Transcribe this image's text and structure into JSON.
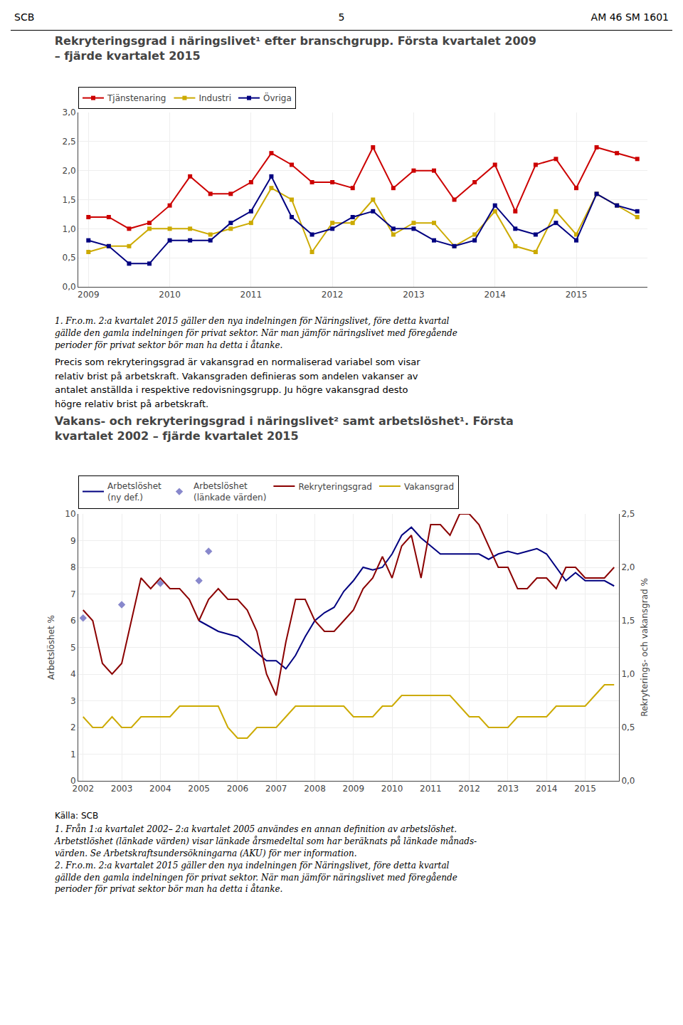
{
  "chart_data": [
    {
      "type": "line",
      "title": "Rekryteringsgrad i näringslivet¹ efter branschgrupp. Första kvartalet 2009\n– fjärde kvartalet 2015",
      "categories": [
        "2009",
        null,
        null,
        null,
        "2010",
        null,
        null,
        null,
        "2011",
        null,
        null,
        null,
        "2012",
        null,
        null,
        null,
        "2013",
        null,
        null,
        null,
        "2014",
        null,
        null,
        null,
        "2015",
        null,
        null,
        null
      ],
      "series": [
        {
          "name": "Tjänstenaring",
          "color": "#cc0000",
          "marker": "square",
          "values": [
            1.2,
            1.2,
            1.0,
            1.1,
            1.4,
            1.9,
            1.6,
            1.6,
            1.8,
            2.3,
            2.1,
            1.8,
            1.8,
            1.7,
            2.4,
            1.7,
            2.0,
            2.0,
            1.5,
            1.8,
            2.1,
            1.3,
            2.1,
            2.2,
            1.7,
            2.4,
            2.3,
            2.2
          ]
        },
        {
          "name": "Industri",
          "color": "#ccaa00",
          "marker": "square",
          "values": [
            0.6,
            0.7,
            0.7,
            1.0,
            1.0,
            1.0,
            0.9,
            1.0,
            1.1,
            1.7,
            1.5,
            0.6,
            1.1,
            1.1,
            1.5,
            0.9,
            1.1,
            1.1,
            0.7,
            0.9,
            1.3,
            0.7,
            0.6,
            1.3,
            0.9,
            1.6,
            1.4,
            1.2
          ]
        },
        {
          "name": "Övriga",
          "color": "#000080",
          "marker": "square",
          "values": [
            0.8,
            0.7,
            0.4,
            0.4,
            0.8,
            0.8,
            0.8,
            1.1,
            1.3,
            1.9,
            1.2,
            0.9,
            1.0,
            1.2,
            1.3,
            1.0,
            1.0,
            0.8,
            0.7,
            0.8,
            1.4,
            1.0,
            0.9,
            1.1,
            0.8,
            1.6,
            1.4,
            1.3
          ]
        }
      ],
      "ylim": [
        0.0,
        3.0
      ],
      "yticks": [
        {
          "value": 0.0,
          "label": "0,0"
        },
        {
          "value": 0.5,
          "label": "0,5"
        },
        {
          "value": 1.0,
          "label": "1,0"
        },
        {
          "value": 1.5,
          "label": "1,5"
        },
        {
          "value": 2.0,
          "label": "2,0"
        },
        {
          "value": 2.5,
          "label": "2,5"
        },
        {
          "value": 3.0,
          "label": "3,0"
        }
      ],
      "grid": true,
      "legend": "upper left",
      "annotations": [
        "SCB",
        "5",
        "AM 46 SM 1601",
        "1. Fr.o.m. 2:a kvartalet 2015 gäller den nya indelningen för Näringslivet, före detta kvartal\ngällde den gamla indelningen för privat sektor. När man jämför näringslivet med föregående\nperioder för privat sektor bör man ha detta i åtanke.",
        "Precis som rekryteringsgrad är vakansgrad en normaliserad variabel som visar\nrelativ brist på arbetskraft. Vakansgraden definieras som andelen vakanser av\nantalet anställda i respektive redovisningsgrupp. Ju högre vakansgrad desto\nhögre relativ brist på arbetskraft."
      ]
    },
    {
      "type": "line",
      "title": "Vakans- och rekryteringsgrad i näringslivet² samt arbetslöshet¹. Första\nkvartalet 2002 – fjärde kvartalet 2015",
      "categories": [
        "2002",
        null,
        null,
        null,
        "2003",
        null,
        null,
        null,
        "2004",
        null,
        null,
        null,
        "2005",
        null,
        null,
        null,
        "2006",
        null,
        null,
        null,
        "2007",
        null,
        null,
        null,
        "2008",
        null,
        null,
        null,
        "2009",
        null,
        null,
        null,
        "2010",
        null,
        null,
        null,
        "2011",
        null,
        null,
        null,
        "2012",
        null,
        null,
        null,
        "2013",
        null,
        null,
        null,
        "2014",
        null,
        null,
        null,
        "2015",
        null,
        null,
        null
      ],
      "series": [
        {
          "name": "Arbetslöshet\n(ny def.)",
          "color": "#000080",
          "type": "line",
          "values": [
            null,
            null,
            null,
            null,
            null,
            null,
            null,
            null,
            null,
            null,
            null,
            null,
            6.0,
            5.8,
            5.6,
            5.5,
            5.4,
            5.1,
            4.8,
            4.5,
            4.5,
            4.2,
            4.7,
            5.4,
            6.0,
            6.3,
            6.5,
            7.1,
            7.5,
            8.0,
            7.9,
            8.0,
            8.5,
            9.2,
            9.5,
            9.1,
            8.8,
            8.5,
            8.5,
            8.5,
            8.5,
            8.5,
            8.3,
            8.5,
            8.6,
            8.5,
            8.6,
            8.7,
            8.5,
            8.0,
            7.5,
            7.8,
            7.5,
            7.5,
            7.5,
            7.3
          ]
        },
        {
          "name": "Arbetslöshet\n(länkade värden)",
          "color": "#8888cc",
          "type": "scatter",
          "marker": "diamond",
          "values": [
            6.1,
            null,
            null,
            null,
            6.6,
            null,
            null,
            null,
            7.4,
            null,
            null,
            null,
            7.5,
            8.6,
            null,
            null,
            null,
            null,
            null,
            null,
            null,
            null,
            null,
            null,
            null,
            null,
            null,
            null,
            null,
            null,
            null,
            null,
            null,
            null,
            null,
            null,
            null,
            null,
            null,
            null,
            null,
            null,
            null,
            null,
            null,
            null,
            null,
            null,
            null,
            null,
            null,
            null,
            null,
            null,
            null,
            null
          ]
        },
        {
          "name": "Rekryteringsgrad",
          "color": "#8b0000",
          "type": "line",
          "axis": "y2",
          "values": [
            1.6,
            1.5,
            1.1,
            1.0,
            1.1,
            1.5,
            1.9,
            1.8,
            1.9,
            1.8,
            1.8,
            1.7,
            1.5,
            1.7,
            1.8,
            1.7,
            1.7,
            1.6,
            1.4,
            1.0,
            0.8,
            1.3,
            1.7,
            1.7,
            1.5,
            1.4,
            1.4,
            1.5,
            1.6,
            1.8,
            1.9,
            2.1,
            1.9,
            2.2,
            2.3,
            1.9,
            2.4,
            2.4,
            2.3,
            2.5,
            2.5,
            2.4,
            2.2,
            2.0,
            2.0,
            1.8,
            1.8,
            1.9,
            1.9,
            1.8,
            2.0,
            2.0,
            1.9,
            1.9,
            1.9,
            2.0
          ]
        },
        {
          "name": "Vakansgrad",
          "color": "#ccaa00",
          "type": "line",
          "axis": "y2",
          "values": [
            0.6,
            0.5,
            0.5,
            0.6,
            0.5,
            0.5,
            0.6,
            0.6,
            0.6,
            0.6,
            0.7,
            0.7,
            0.7,
            0.7,
            0.7,
            0.5,
            0.4,
            0.4,
            0.5,
            0.5,
            0.5,
            0.6,
            0.7,
            0.7,
            0.7,
            0.7,
            0.7,
            0.7,
            0.6,
            0.6,
            0.6,
            0.7,
            0.7,
            0.8,
            0.8,
            0.8,
            0.8,
            0.8,
            0.8,
            0.7,
            0.6,
            0.6,
            0.5,
            0.5,
            0.5,
            0.6,
            0.6,
            0.6,
            0.6,
            0.7,
            0.7,
            0.7,
            0.7,
            0.8,
            0.9,
            0.9
          ]
        }
      ],
      "ylabel": "Arbetslöshet %",
      "ylim": [
        0,
        10
      ],
      "yticks": [
        0,
        1,
        2,
        3,
        4,
        5,
        6,
        7,
        8,
        9,
        10
      ],
      "y2label": "Rekryterings- och vakansgrad %",
      "y2lim": [
        0.0,
        2.5
      ],
      "y2ticks": [
        {
          "value": 0.0,
          "label": "0,0"
        },
        {
          "value": 0.5,
          "label": "0,5"
        },
        {
          "value": 1.0,
          "label": "1,0"
        },
        {
          "value": 1.5,
          "label": "1,5"
        },
        {
          "value": 2.0,
          "label": "2,0"
        },
        {
          "value": 2.5,
          "label": "2,5"
        }
      ],
      "grid": true,
      "legend": "upper left",
      "annotations": [
        "Källa: SCB",
        "1. Från 1:a kvartalet 2002– 2:a kvartalet 2005 användes en annan definition av arbetslöshet.\nArbetstlöshet (länkade värden) visar länkade årsmedeltal som har beräknats på länkade månads-\nvärden. Se Arbetskraftsundersökningarna (AKU) för mer information.\n2. Fr.o.m. 2:a kvartalet 2015 gäller den nya indelningen för Näringslivet, före detta kvartal\ngällde den gamla indelningen för privat sektor. När man jämför näringslivet med föregående\nperioder för privat sektor bör man ha detta i åtanke."
      ]
    }
  ]
}
